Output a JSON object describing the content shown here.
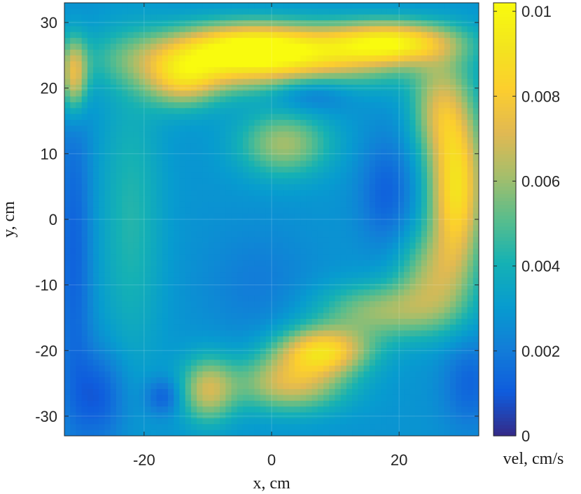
{
  "chart_data": {
    "type": "heatmap",
    "title": "",
    "xlabel": "x, cm",
    "ylabel": "y, cm",
    "colorbar_label": "vel, cm/s",
    "colormap": "parula",
    "xlim": [
      -32.5,
      32.5
    ],
    "ylim": [
      -33,
      33
    ],
    "clim": [
      0,
      0.0102
    ],
    "x_ticks": [
      {
        "value": -20,
        "label": "-20"
      },
      {
        "value": 0,
        "label": "0"
      },
      {
        "value": 20,
        "label": "20"
      }
    ],
    "y_ticks": [
      {
        "value": -30,
        "label": "-30"
      },
      {
        "value": -20,
        "label": "-20"
      },
      {
        "value": -10,
        "label": "-10"
      },
      {
        "value": 0,
        "label": "0"
      },
      {
        "value": 10,
        "label": "10"
      },
      {
        "value": 20,
        "label": "20"
      },
      {
        "value": 30,
        "label": "30"
      }
    ],
    "colorbar_ticks": [
      {
        "value": 0,
        "label": "0"
      },
      {
        "value": 0.002,
        "label": "0.002"
      },
      {
        "value": 0.004,
        "label": "0.004"
      },
      {
        "value": 0.006,
        "label": "0.006"
      },
      {
        "value": 0.008,
        "label": "0.008"
      },
      {
        "value": 0.01,
        "label": "0.01"
      }
    ],
    "grid": true,
    "field_features": {
      "background": 0.0028,
      "features": [
        {
          "name": "top-band",
          "x": -2,
          "y": 24.5,
          "sx": 14,
          "sy": 3.2,
          "value": 0.0068
        },
        {
          "name": "top-peak",
          "x": -3,
          "y": 27,
          "sx": 7,
          "sy": 2.2,
          "value": 0.003
        },
        {
          "name": "top-right-band",
          "x": 19,
          "y": 27,
          "sx": 7,
          "sy": 2.2,
          "value": 0.0058
        },
        {
          "name": "top-left-tail",
          "x": -14,
          "y": 21,
          "sx": 4,
          "sy": 3,
          "value": 0.0035
        },
        {
          "name": "top-dip",
          "x": 6,
          "y": 19.5,
          "sx": 4.5,
          "sy": 2.2,
          "value": -0.0018
        },
        {
          "name": "center-upper",
          "x": 2,
          "y": 11.5,
          "sx": 5,
          "sy": 3.5,
          "value": 0.0033
        },
        {
          "name": "right-lobe",
          "x": 29,
          "y": 5,
          "sx": 3,
          "sy": 9,
          "value": 0.0062
        },
        {
          "name": "right-curve-upper",
          "x": 26,
          "y": 17,
          "sx": 3,
          "sy": 5,
          "value": 0.003
        },
        {
          "name": "right-curve-lower",
          "x": 25,
          "y": -9,
          "sx": 4,
          "sy": 5,
          "value": 0.0028
        },
        {
          "name": "lower-right-band",
          "x": 17,
          "y": -14,
          "sx": 7,
          "sy": 3,
          "value": 0.003
        },
        {
          "name": "lower-peak",
          "x": 8,
          "y": -20,
          "sx": 5,
          "sy": 2.5,
          "value": 0.0055
        },
        {
          "name": "lower-center",
          "x": 3,
          "y": -25,
          "sx": 6,
          "sy": 3,
          "value": 0.0042
        },
        {
          "name": "lower-left-fan",
          "x": -10,
          "y": -26,
          "sx": 3,
          "sy": 3.5,
          "value": 0.0038
        },
        {
          "name": "right-dip",
          "x": 18,
          "y": 4,
          "sx": 3,
          "sy": 6,
          "value": -0.0016
        },
        {
          "name": "left-column",
          "x": -22,
          "y": 0,
          "sx": 3.5,
          "sy": 16,
          "value": 0.0015
        },
        {
          "name": "left-edge-dip",
          "x": -31,
          "y": -5,
          "sx": 2,
          "sy": 18,
          "value": -0.0016
        },
        {
          "name": "bottom-left-dip",
          "x": -27,
          "y": -27,
          "sx": 3,
          "sy": 5,
          "value": -0.0018
        },
        {
          "name": "dark-spot",
          "x": -17,
          "y": -27,
          "sx": 2,
          "sy": 2,
          "value": -0.0018
        },
        {
          "name": "bottom-right-dip",
          "x": 31,
          "y": -25,
          "sx": 3,
          "sy": 5,
          "value": -0.0015
        },
        {
          "name": "center-diagonal-dip",
          "x": -2,
          "y": -10,
          "sx": 6,
          "sy": 6,
          "value": -0.0008
        },
        {
          "name": "left-edge-peak",
          "x": -31,
          "y": 22,
          "sx": 1.5,
          "sy": 4,
          "value": 0.0045
        }
      ]
    }
  }
}
